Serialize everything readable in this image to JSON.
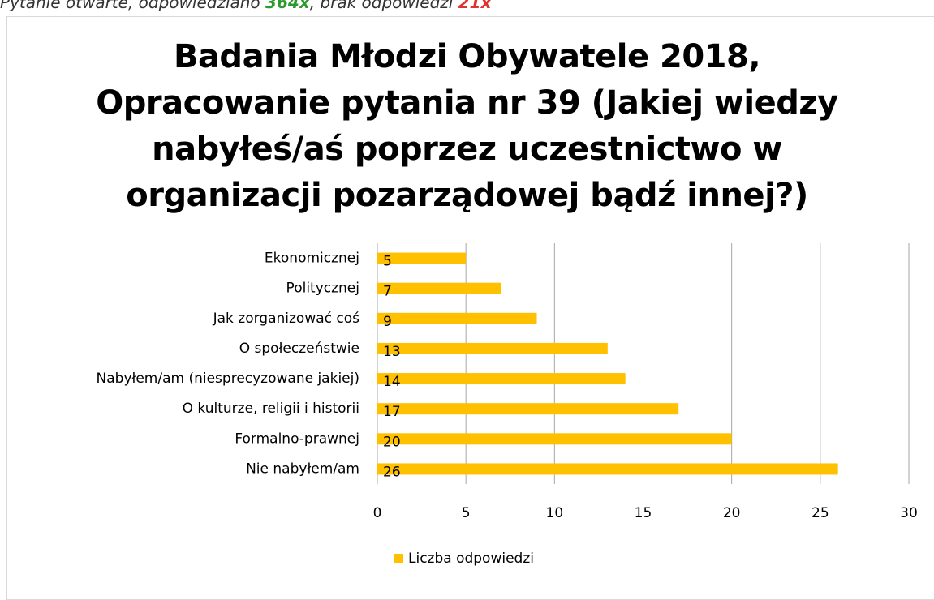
{
  "header": {
    "parts": [
      "Pytanie otwarte, odpowiedziano ",
      "364x",
      ", brak odpowiedzi ",
      "21x"
    ]
  },
  "chart_data": {
    "type": "bar",
    "orientation": "horizontal",
    "title": "Badania Młodzi Obywatele 2018,\nOpracowanie pytania nr 39 (Jakiej wiedzy\nnabyłeś/aś poprzez uczestnictwo w\norganizacji pozarządowej bądź innej?)",
    "categories": [
      "Ekonomicznej",
      "Politycznej",
      "Jak zorganizować coś",
      "O społeczeństwie",
      "Nabyłem/am (niesprecyzowane jakiej)",
      "O kulturze, religii i historii",
      "Formalno-prawnej",
      "Nie nabyłem/am"
    ],
    "series": [
      {
        "name": "Liczba odpowiedzi",
        "color": "#ffc000",
        "values": [
          5,
          7,
          9,
          13,
          14,
          17,
          20,
          26
        ]
      }
    ],
    "xlim": [
      0,
      30
    ],
    "xticks": [
      0,
      5,
      10,
      15,
      20,
      25,
      30
    ],
    "grid": true,
    "legend": "bottom",
    "data_labels": true
  }
}
